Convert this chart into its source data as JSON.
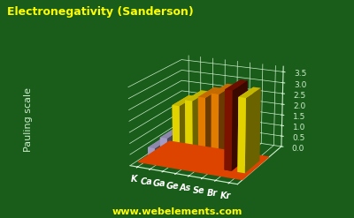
{
  "title": "Electronegativity (Sanderson)",
  "ylabel": "Pauling scale",
  "website": "www.webelements.com",
  "elements": [
    "K",
    "Ca",
    "Ga",
    "Ge",
    "As",
    "Se",
    "Br",
    "Kr"
  ],
  "values": [
    0.45,
    1.0,
    2.55,
    2.85,
    3.07,
    3.3,
    3.55,
    3.3
  ],
  "colors": [
    "#b8b0e0",
    "#b8b0e0",
    "#ffee00",
    "#ffee00",
    "#ff8c00",
    "#ff8c00",
    "#8b1500",
    "#ffee00"
  ],
  "background_color": "#1a5c1a",
  "title_color": "#ffff00",
  "axis_color": "#cceecc",
  "label_color": "#ffffff",
  "website_color": "#ffff00",
  "floor_color": "#dd4400",
  "ylim": [
    0,
    3.75
  ],
  "yticks": [
    0.0,
    0.5,
    1.0,
    1.5,
    2.0,
    2.5,
    3.0,
    3.5
  ],
  "elev": 18,
  "azim": -65
}
